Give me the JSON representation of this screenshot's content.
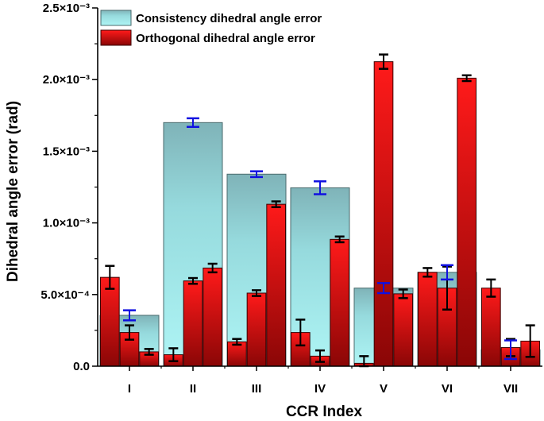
{
  "chart_data": {
    "type": "bar",
    "xlabel": "CCR Index",
    "ylabel": "Dihedral angle error (rad)",
    "ylim": [
      0,
      0.0025
    ],
    "yticks": [
      {
        "value": 0.0,
        "label": "0.0"
      },
      {
        "value": 0.0005,
        "label": "5.0×10⁻⁴"
      },
      {
        "value": 0.001,
        "label": "1.0×10⁻³"
      },
      {
        "value": 0.0015,
        "label": "1.5×10⁻³"
      },
      {
        "value": 0.002,
        "label": "2.0×10⁻³"
      },
      {
        "value": 0.0025,
        "label": "2.5×10⁻³"
      }
    ],
    "categories": [
      "I",
      "II",
      "III",
      "IV",
      "V",
      "VI",
      "VII"
    ],
    "legend_position": "top-left",
    "grid": false,
    "series": [
      {
        "name": "Consistency dihedral angle error",
        "color": "#9ee6e8",
        "error_color": "#1010e0",
        "values": [
          0.000355,
          0.0017,
          0.00134,
          0.001245,
          0.000545,
          0.000655,
          0.000115
        ],
        "errors": [
          3.5e-05,
          3e-05,
          2e-05,
          4.5e-05,
          3.5e-05,
          5e-05,
          6.5e-05
        ]
      },
      {
        "name": "Orthogonal dihedral angle error",
        "color": "#e41a1a",
        "error_color": "#000000",
        "values": [
          [
            0.00062,
            0.000235,
            0.0001
          ],
          [
            8e-05,
            0.000595,
            0.000685
          ],
          [
            0.00017,
            0.00051,
            0.00113
          ],
          [
            0.000235,
            7e-05,
            0.000885
          ],
          [
            2e-05,
            0.002125,
            0.000505
          ],
          [
            0.000655,
            0.000545,
            0.00201
          ],
          [
            0.000545,
            0.00013,
            0.000175
          ]
        ],
        "errors": [
          [
            8e-05,
            5e-05,
            2e-05
          ],
          [
            4.5e-05,
            2e-05,
            3e-05
          ],
          [
            2e-05,
            2e-05,
            2e-05
          ],
          [
            9e-05,
            4e-05,
            2e-05
          ],
          [
            5e-05,
            5e-05,
            3e-05
          ],
          [
            3e-05,
            0.00015,
            2e-05
          ],
          [
            6e-05,
            6e-05,
            0.00011
          ]
        ]
      }
    ]
  }
}
